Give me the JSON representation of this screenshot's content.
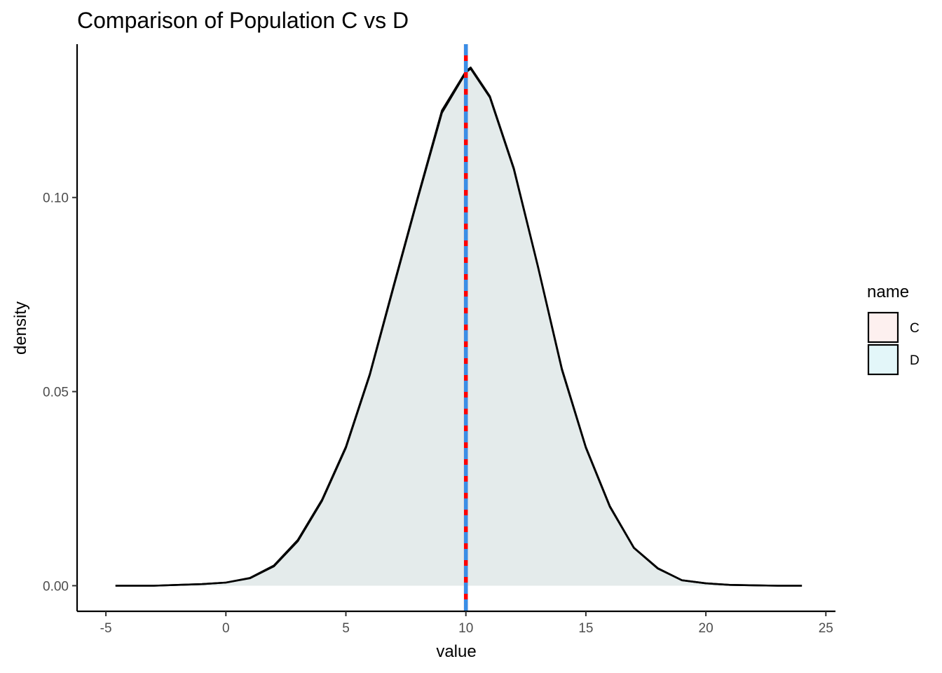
{
  "chart_data": {
    "type": "area",
    "title": "Comparison of Population C vs D",
    "xlabel": "value",
    "ylabel": "density",
    "xlim": [
      -6.2,
      25.4
    ],
    "ylim": [
      -0.0066,
      0.1395
    ],
    "x_ticks": [
      -5,
      0,
      5,
      10,
      15,
      20,
      25
    ],
    "x_tick_labels": [
      "-5",
      "0",
      "5",
      "10",
      "15",
      "20",
      "25"
    ],
    "y_ticks": [
      0.0,
      0.05,
      0.1
    ],
    "y_tick_labels": [
      "0.00",
      "0.05",
      "0.10"
    ],
    "grid": false,
    "legend": {
      "title": "name",
      "placement": "right",
      "entries": [
        {
          "label": "C",
          "fill": "#fdf0ef"
        },
        {
          "label": "D",
          "fill": "#e3f6f9"
        }
      ]
    },
    "series": [
      {
        "name": "C",
        "fill": "#f8766d",
        "fill_opacity": 0.1,
        "stroke": "#000000",
        "x": [
          -4.6,
          -3,
          -2,
          -1,
          0,
          1,
          2,
          3,
          4,
          5,
          6,
          7,
          8,
          9,
          10,
          10.2,
          11,
          12,
          13,
          14,
          15,
          16,
          17,
          18,
          19,
          20,
          21,
          22,
          23,
          24
        ],
        "y": [
          0.0,
          0.0,
          0.0002,
          0.0004,
          0.0008,
          0.002,
          0.0052,
          0.0118,
          0.0221,
          0.0358,
          0.0546,
          0.0776,
          0.1002,
          0.1224,
          0.1325,
          0.1335,
          0.1261,
          0.1075,
          0.0824,
          0.0559,
          0.0357,
          0.0205,
          0.0098,
          0.0045,
          0.0014,
          0.0006,
          0.0002,
          0.0001,
          0.0,
          0.0
        ]
      },
      {
        "name": "D",
        "fill": "#00bfc4",
        "fill_opacity": 0.1,
        "stroke": "#000000",
        "x": [
          -4.6,
          -3,
          -2,
          -1,
          0,
          1,
          2,
          3,
          4,
          5,
          6,
          7,
          8,
          9,
          10,
          10.2,
          11,
          12,
          13,
          14,
          15,
          16,
          17,
          18,
          19,
          20,
          21,
          22,
          23,
          24
        ],
        "y": [
          0.0,
          0.0,
          0.0002,
          0.0004,
          0.0008,
          0.0019,
          0.005,
          0.0115,
          0.0218,
          0.0355,
          0.0543,
          0.0772,
          0.0998,
          0.1218,
          0.1322,
          0.1332,
          0.1258,
          0.1072,
          0.0822,
          0.0556,
          0.0355,
          0.0203,
          0.0097,
          0.0044,
          0.0014,
          0.0006,
          0.0002,
          0.0001,
          0.0,
          0.0
        ]
      }
    ],
    "reference_lines": [
      {
        "series": "C",
        "x": 10,
        "color": "#ff0000",
        "style": "dashed"
      },
      {
        "series": "D",
        "x": 10,
        "color": "#3a8ee6",
        "style": "dashed"
      }
    ]
  }
}
